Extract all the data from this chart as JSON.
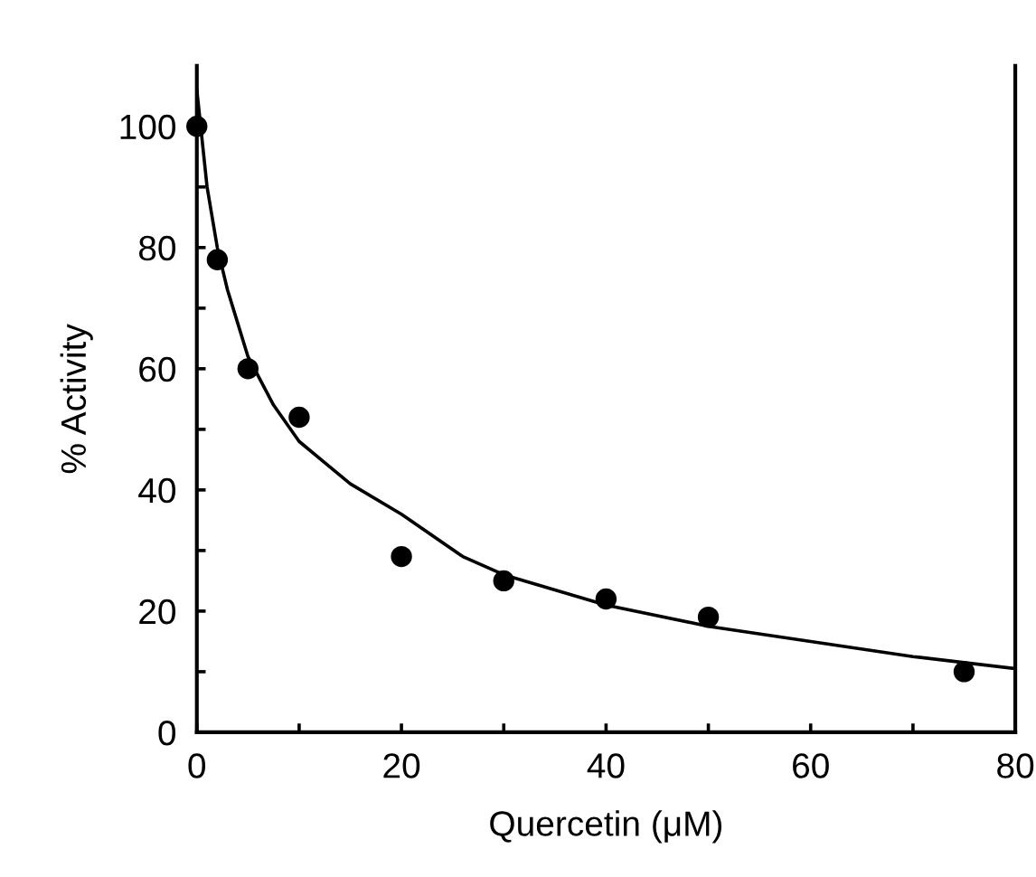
{
  "chart_data": {
    "type": "scatter",
    "xlabel": "Quercetin (μM)",
    "ylabel": "% Activity",
    "xlim": [
      0,
      80
    ],
    "ylim": [
      0,
      110
    ],
    "xticks": [
      0,
      {
        "value": 10,
        "label": null
      },
      20,
      {
        "value": 30,
        "label": null
      },
      40,
      {
        "value": 50,
        "label": null
      },
      60,
      {
        "value": 70,
        "label": null
      },
      80
    ],
    "yticks": [
      0,
      {
        "value": 10,
        "label": null
      },
      20,
      {
        "value": 30,
        "label": null
      },
      40,
      {
        "value": 50,
        "label": null
      },
      60,
      {
        "value": 70,
        "label": null
      },
      80,
      {
        "value": 90,
        "label": null
      },
      100
    ],
    "grid": false,
    "legend": false,
    "marker": "circle",
    "series": [
      {
        "color": "#000000",
        "x": [
          0,
          2,
          5,
          10,
          20,
          30,
          40,
          50,
          75
        ],
        "values": [
          100,
          78,
          60,
          52,
          29,
          25,
          22,
          19,
          10
        ]
      },
      {
        "type": "line",
        "color": "#000000",
        "marker": "none",
        "line_style": "solid",
        "x": [
          0,
          1,
          2,
          3,
          5,
          7.5,
          10,
          15,
          20,
          26,
          30,
          40,
          50,
          60,
          70,
          80
        ],
        "values": [
          106,
          90,
          80,
          73,
          62,
          54,
          48,
          41,
          36,
          29,
          26,
          21,
          17.5,
          15,
          12.5,
          10.5
        ]
      }
    ]
  }
}
